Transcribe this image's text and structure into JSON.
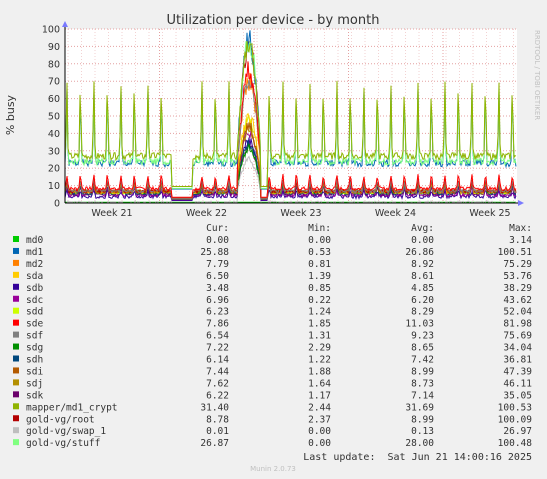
{
  "chart_data": {
    "type": "line",
    "title": "Utilization per device - by month",
    "ylabel": "% busy",
    "xlabel": "",
    "ylim": [
      0,
      100
    ],
    "yticks": [
      0,
      10,
      20,
      30,
      40,
      50,
      60,
      70,
      80,
      90,
      100
    ],
    "x_ticks": [
      "Week 21",
      "Week 22",
      "Week 23",
      "Week 24",
      "Week 25"
    ],
    "grid": true,
    "watermark": "RRDTOOL / TOBI OETIKER",
    "columns": [
      "Cur:",
      "Min:",
      "Avg:",
      "Max:"
    ],
    "series": [
      {
        "name": "md0",
        "color": "#00cc00",
        "cur": "0.00",
        "min": "0.00",
        "avg": "0.00",
        "max": "3.14"
      },
      {
        "name": "md1",
        "color": "#0066b3",
        "cur": "25.88",
        "min": "0.53",
        "avg": "26.86",
        "max": "100.51"
      },
      {
        "name": "md2",
        "color": "#ff8000",
        "cur": "7.79",
        "min": "0.81",
        "avg": "8.92",
        "max": "75.29"
      },
      {
        "name": "sda",
        "color": "#ffcc00",
        "cur": "6.50",
        "min": "1.39",
        "avg": "8.61",
        "max": "53.76"
      },
      {
        "name": "sdb",
        "color": "#330099",
        "cur": "3.48",
        "min": "0.85",
        "avg": "4.85",
        "max": "38.29"
      },
      {
        "name": "sdc",
        "color": "#990099",
        "cur": "6.96",
        "min": "0.22",
        "avg": "6.20",
        "max": "43.62"
      },
      {
        "name": "sdd",
        "color": "#ccff00",
        "cur": "6.23",
        "min": "1.24",
        "avg": "8.29",
        "max": "52.04"
      },
      {
        "name": "sde",
        "color": "#ff0000",
        "cur": "7.86",
        "min": "1.85",
        "avg": "11.03",
        "max": "81.98"
      },
      {
        "name": "sdf",
        "color": "#808080",
        "cur": "6.54",
        "min": "1.31",
        "avg": "9.23",
        "max": "75.69"
      },
      {
        "name": "sdg",
        "color": "#008f00",
        "cur": "7.22",
        "min": "2.29",
        "avg": "8.65",
        "max": "34.04"
      },
      {
        "name": "sdh",
        "color": "#00487d",
        "cur": "6.14",
        "min": "1.22",
        "avg": "7.42",
        "max": "36.81"
      },
      {
        "name": "sdi",
        "color": "#b35a00",
        "cur": "7.44",
        "min": "1.88",
        "avg": "8.99",
        "max": "47.39"
      },
      {
        "name": "sdj",
        "color": "#b38f00",
        "cur": "7.62",
        "min": "1.64",
        "avg": "8.73",
        "max": "46.11"
      },
      {
        "name": "sdk",
        "color": "#6b006b",
        "cur": "6.22",
        "min": "1.17",
        "avg": "7.14",
        "max": "35.05"
      },
      {
        "name": "mapper/md1_crypt",
        "color": "#8fb300",
        "cur": "31.40",
        "min": "2.44",
        "avg": "31.69",
        "max": "100.53"
      },
      {
        "name": "gold-vg/root",
        "color": "#b30000",
        "cur": "8.78",
        "min": "2.37",
        "avg": "8.99",
        "max": "100.09"
      },
      {
        "name": "gold-vg/swap_1",
        "color": "#bebebe",
        "cur": "0.01",
        "min": "0.00",
        "avg": "0.13",
        "max": "26.97"
      },
      {
        "name": "gold-vg/stuff",
        "color": "#80ff80",
        "cur": "26.87",
        "min": "0.00",
        "avg": "28.00",
        "max": "100.48"
      }
    ]
  },
  "footer": {
    "last_update": "Last update:  Sat Jun 21 14:00:16 2025",
    "munin": "Munin 2.0.73"
  }
}
